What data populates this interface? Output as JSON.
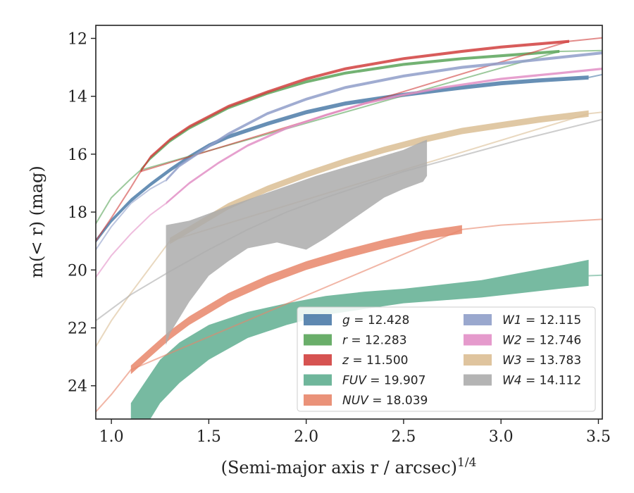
{
  "chart_data": {
    "type": "line",
    "xlabel": "(Semi-major axis r / arcsec)",
    "xlabel_exp": "1/4",
    "ylabel": "m(< r) (mag)",
    "xlim": [
      0.92,
      3.52
    ],
    "ylim": [
      25.15,
      11.55
    ],
    "y_inverted": true,
    "x_ticks": [
      "1.0",
      "1.5",
      "2.0",
      "2.5",
      "3.0",
      "3.5"
    ],
    "y_ticks": [
      "12",
      "14",
      "16",
      "18",
      "20",
      "22",
      "24"
    ],
    "grid": false,
    "legend_position": "lower-right",
    "series": [
      {
        "name": "g",
        "label_value": "12.428",
        "color": "#4c7ba8",
        "band": {
          "x": [
            0.92,
            1.0,
            1.1,
            1.2,
            1.3,
            1.4,
            1.5,
            1.6,
            1.8,
            2.0,
            2.2,
            2.5,
            2.8,
            3.0,
            3.2,
            3.45
          ],
          "y": [
            19.0,
            18.3,
            17.6,
            17.05,
            16.55,
            16.1,
            15.7,
            15.4,
            14.95,
            14.55,
            14.25,
            13.95,
            13.7,
            13.55,
            13.45,
            13.35
          ],
          "w": 0.14
        },
        "line": {
          "x": [
            3.45,
            3.52
          ],
          "y": [
            13.35,
            13.25
          ]
        }
      },
      {
        "name": "r",
        "label_value": "12.283",
        "color": "#5aa55a",
        "band": {
          "x": [
            1.15,
            1.2,
            1.3,
            1.4,
            1.5,
            1.6,
            1.8,
            2.0,
            2.2,
            2.5,
            2.8,
            3.0,
            3.3
          ],
          "y": [
            16.55,
            16.15,
            15.55,
            15.1,
            14.75,
            14.4,
            13.9,
            13.5,
            13.2,
            12.9,
            12.7,
            12.6,
            12.45
          ],
          "w": 0.1
        },
        "line": {
          "x": [
            0.92,
            1.0,
            1.1,
            1.15,
            3.3,
            3.52
          ],
          "y": [
            18.4,
            17.5,
            16.85,
            16.55,
            12.45,
            12.42
          ]
        }
      },
      {
        "name": "z",
        "label_value": "11.500",
        "color": "#d1403e",
        "band": {
          "x": [
            1.15,
            1.2,
            1.3,
            1.4,
            1.5,
            1.6,
            1.8,
            2.0,
            2.2,
            2.5,
            2.8,
            3.0,
            3.35
          ],
          "y": [
            16.6,
            16.1,
            15.5,
            15.05,
            14.7,
            14.35,
            13.85,
            13.4,
            13.05,
            12.7,
            12.45,
            12.3,
            12.1
          ],
          "w": 0.1
        },
        "line": {
          "x": [
            0.92,
            1.0,
            1.1,
            1.15,
            3.35,
            3.52
          ],
          "y": [
            19.0,
            18.2,
            17.15,
            16.6,
            12.1,
            11.98
          ]
        }
      },
      {
        "name": "FUV",
        "label_value": "19.907",
        "color": "#5fae90",
        "band_upper": {
          "x": [
            1.1,
            1.15,
            1.2,
            1.25,
            1.35,
            1.5,
            1.7,
            1.9,
            2.1,
            2.3,
            2.5,
            2.7,
            2.9,
            3.1,
            3.3,
            3.45
          ],
          "y": [
            24.6,
            24.1,
            23.6,
            23.1,
            22.5,
            21.9,
            21.45,
            21.15,
            20.9,
            20.75,
            20.65,
            20.5,
            20.35,
            20.1,
            19.85,
            19.65
          ]
        },
        "band_lower": {
          "x": [
            1.1,
            1.15,
            1.2,
            1.25,
            1.35,
            1.5,
            1.7,
            1.9,
            2.1,
            2.3,
            2.5,
            2.7,
            2.9,
            3.1,
            3.3,
            3.45
          ],
          "y": [
            25.15,
            25.15,
            25.15,
            24.6,
            23.9,
            23.1,
            22.35,
            21.9,
            21.55,
            21.35,
            21.15,
            21.05,
            20.95,
            20.8,
            20.65,
            20.55
          ]
        },
        "line": {
          "x": [
            3.45,
            3.52
          ],
          "y": [
            20.2,
            20.18
          ]
        }
      },
      {
        "name": "NUV",
        "label_value": "18.039",
        "color": "#e8866a",
        "band": {
          "x": [
            1.1,
            1.2,
            1.3,
            1.4,
            1.5,
            1.6,
            1.7,
            1.8,
            2.0,
            2.2,
            2.4,
            2.6,
            2.8
          ],
          "y": [
            23.45,
            22.85,
            22.25,
            21.75,
            21.35,
            20.95,
            20.65,
            20.35,
            19.85,
            19.45,
            19.1,
            18.8,
            18.6
          ],
          "w": 0.3
        },
        "line": {
          "x": [
            0.92,
            1.0,
            1.1,
            2.8,
            3.0,
            3.52
          ],
          "y": [
            24.9,
            24.3,
            23.45,
            18.6,
            18.45,
            18.25
          ]
        }
      },
      {
        "name": "W1",
        "label_value": "12.115",
        "color": "#8f9ec9",
        "band": {
          "x": [
            1.28,
            1.35,
            1.45,
            1.6,
            1.8,
            2.0,
            2.2,
            2.5,
            2.8,
            3.1,
            3.52
          ],
          "y": [
            16.9,
            16.4,
            15.95,
            15.3,
            14.6,
            14.1,
            13.7,
            13.3,
            13.0,
            12.8,
            12.5
          ],
          "w": 0.1
        },
        "line": {
          "x": [
            0.92,
            1.0,
            1.1,
            1.2,
            1.28
          ],
          "y": [
            19.3,
            18.5,
            17.7,
            17.2,
            16.9
          ]
        }
      },
      {
        "name": "W2",
        "label_value": "12.746",
        "color": "#e28fc6",
        "band": {
          "x": [
            1.28,
            1.4,
            1.55,
            1.7,
            1.9,
            2.1,
            2.3,
            2.5,
            2.7,
            3.0,
            3.3,
            3.52
          ],
          "y": [
            17.7,
            17.0,
            16.3,
            15.7,
            15.1,
            14.65,
            14.25,
            13.95,
            13.7,
            13.4,
            13.2,
            13.05
          ],
          "w": 0.08
        },
        "line": {
          "x": [
            0.92,
            1.0,
            1.1,
            1.2,
            1.28
          ],
          "y": [
            20.25,
            19.5,
            18.75,
            18.1,
            17.7
          ]
        }
      },
      {
        "name": "W3",
        "label_value": "13.783",
        "color": "#dbbe94",
        "band": {
          "x": [
            1.3,
            1.45,
            1.6,
            1.8,
            2.0,
            2.2,
            2.4,
            2.6,
            2.8,
            3.0,
            3.2,
            3.45
          ],
          "y": [
            19.0,
            18.4,
            17.8,
            17.2,
            16.7,
            16.25,
            15.85,
            15.5,
            15.2,
            15.0,
            14.8,
            14.6
          ],
          "w": 0.22
        },
        "line": {
          "x": [
            0.92,
            1.0,
            1.1,
            1.2,
            1.3,
            3.45,
            3.52
          ],
          "y": [
            22.65,
            21.75,
            20.8,
            19.9,
            19.0,
            14.6,
            14.55
          ]
        }
      },
      {
        "name": "W4",
        "label_value": "14.112",
        "color": "#acacac",
        "band_upper": {
          "x": [
            1.28,
            1.4,
            1.5,
            1.6,
            1.75,
            1.9,
            2.05,
            2.2,
            2.35,
            2.5,
            2.6,
            2.62
          ],
          "y": [
            18.45,
            18.3,
            18.05,
            17.8,
            17.45,
            17.1,
            16.75,
            16.45,
            16.15,
            15.85,
            15.55,
            15.5
          ]
        },
        "band_lower": {
          "x": [
            1.28,
            1.3,
            1.4,
            1.5,
            1.6,
            1.7,
            1.85,
            2.0,
            2.1,
            2.25,
            2.4,
            2.5,
            2.6,
            2.62
          ],
          "y": [
            22.6,
            22.2,
            21.1,
            20.2,
            19.7,
            19.25,
            19.05,
            19.3,
            18.9,
            18.2,
            17.5,
            17.2,
            16.95,
            16.75
          ]
        },
        "line": {
          "x": [
            0.92,
            1.1,
            1.3,
            1.5,
            1.7,
            1.9,
            2.1,
            2.3,
            2.5,
            2.8,
            3.1,
            3.52
          ],
          "y": [
            21.75,
            20.85,
            20.05,
            19.3,
            18.6,
            18.0,
            17.5,
            17.05,
            16.6,
            16.05,
            15.5,
            14.8
          ]
        }
      }
    ]
  },
  "legend": {
    "items": [
      {
        "name": "g",
        "value": "12.428",
        "color": "#4c7ba8"
      },
      {
        "name": "r",
        "value": "12.283",
        "color": "#5aa55a"
      },
      {
        "name": "z",
        "value": "11.500",
        "color": "#d1403e"
      },
      {
        "name": "FUV",
        "value": "19.907",
        "color": "#5fae90"
      },
      {
        "name": "NUV",
        "value": "18.039",
        "color": "#e8866a"
      },
      {
        "name": "W1",
        "value": "12.115",
        "color": "#8f9ec9"
      },
      {
        "name": "W2",
        "value": "12.746",
        "color": "#e28fc6"
      },
      {
        "name": "W3",
        "value": "13.783",
        "color": "#dbbe94"
      },
      {
        "name": "W4",
        "value": "14.112",
        "color": "#acacac"
      }
    ]
  }
}
